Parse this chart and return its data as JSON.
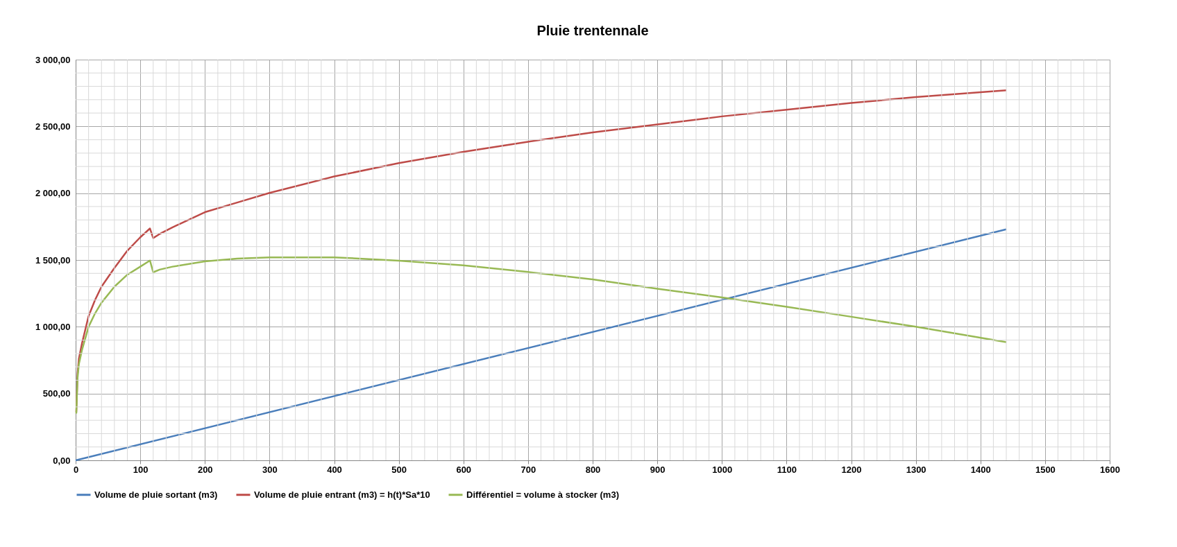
{
  "chart_data": {
    "type": "line",
    "title": "Pluie trentennale",
    "xlim": [
      0,
      1600
    ],
    "ylim": [
      0,
      3000
    ],
    "xticks": [
      0,
      100,
      200,
      300,
      400,
      500,
      600,
      700,
      800,
      900,
      1000,
      1100,
      1200,
      1300,
      1400,
      1500,
      1600
    ],
    "yticks": [
      {
        "value": 0,
        "label": "0,00"
      },
      {
        "value": 500,
        "label": "500,00"
      },
      {
        "value": 1000,
        "label": "1 000,00"
      },
      {
        "value": 1500,
        "label": "1 500,00"
      },
      {
        "value": 2000,
        "label": "2 000,00"
      },
      {
        "value": 2500,
        "label": "2 500,00"
      },
      {
        "value": 3000,
        "label": "3 000,00"
      }
    ],
    "grid": true,
    "legend": "bottom",
    "marker": "none",
    "series": [
      {
        "name": "Volume de pluie sortant (m3)",
        "color": "#4a7ebb",
        "x": [
          0,
          1440
        ],
        "values": [
          0,
          1730
        ]
      },
      {
        "name": "Volume de pluie entrant (m3) = h(t)*Sa*10",
        "color": "#be4b48",
        "x": [
          1,
          3,
          5,
          10,
          20,
          30,
          40,
          60,
          80,
          100,
          115,
          120,
          130,
          150,
          200,
          250,
          300,
          400,
          500,
          600,
          700,
          800,
          900,
          1000,
          1100,
          1200,
          1300,
          1440
        ],
        "values": [
          360,
          650,
          760,
          880,
          1080,
          1200,
          1300,
          1440,
          1570,
          1670,
          1736,
          1664,
          1695,
          1745,
          1858,
          1930,
          2002,
          2125,
          2225,
          2310,
          2385,
          2455,
          2515,
          2575,
          2625,
          2675,
          2720,
          2770
        ]
      },
      {
        "name": "Différentiel = volume à stocker (m3)",
        "color": "#98b954",
        "x": [
          1,
          3,
          5,
          10,
          20,
          30,
          40,
          60,
          80,
          100,
          115,
          120,
          130,
          150,
          200,
          250,
          300,
          400,
          500,
          600,
          700,
          800,
          900,
          1000,
          1100,
          1200,
          1300,
          1440
        ],
        "values": [
          350,
          620,
          720,
          830,
          1000,
          1100,
          1180,
          1300,
          1390,
          1450,
          1496,
          1408,
          1428,
          1450,
          1490,
          1510,
          1520,
          1520,
          1495,
          1460,
          1410,
          1355,
          1285,
          1220,
          1150,
          1075,
          1000,
          885
        ]
      }
    ]
  }
}
